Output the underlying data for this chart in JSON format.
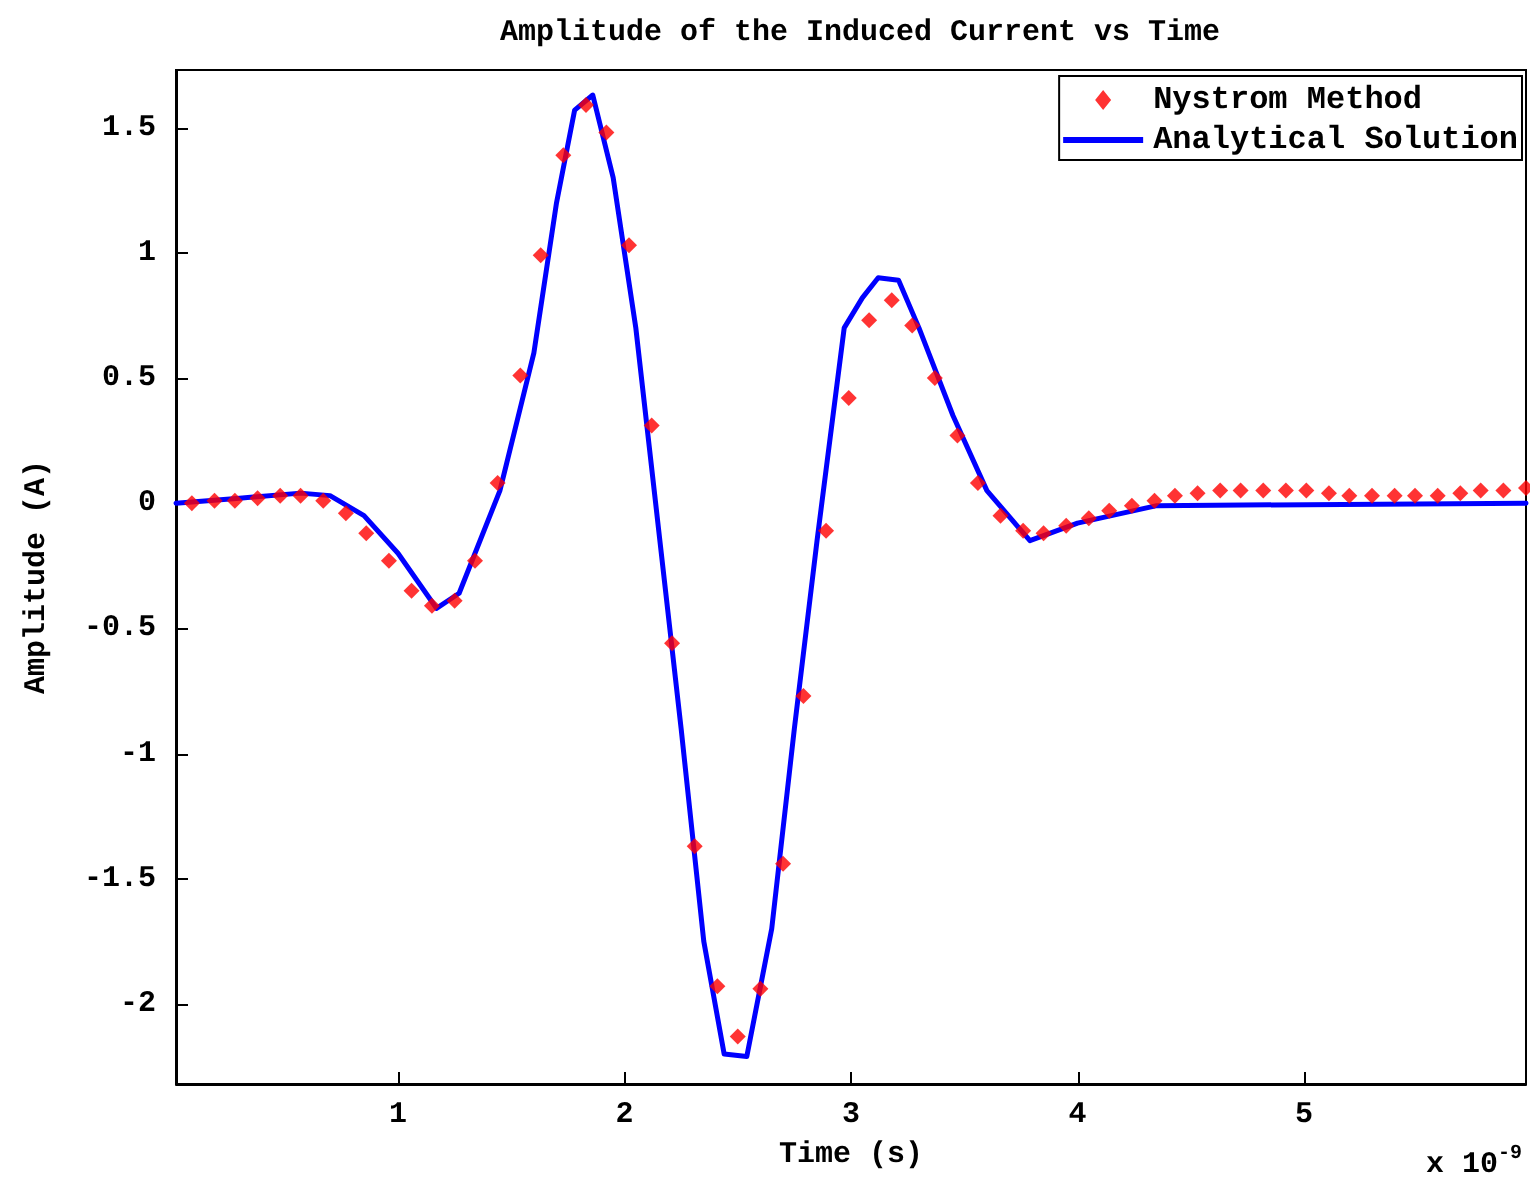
{
  "chart_data": {
    "type": "scatter",
    "title": "Amplitude of the Induced Current vs Time",
    "xlabel": "Time (s)",
    "ylabel": "Amplitude (A)",
    "annotations": [
      "x 10$^{-9}$"
    ],
    "xlim": [
      0.02,
      5.98
    ],
    "xticks": [
      1,
      2,
      3,
      4,
      5
    ],
    "ylim": [
      -2.32,
      1.73
    ],
    "yticks": [
      -2,
      -1.5,
      -1,
      -0.5,
      0,
      0.5,
      1,
      1.5
    ],
    "grid": false,
    "legend": "top right",
    "series": [
      {
        "name": "Nystrom Method",
        "color": "#ff0000",
        "marker": "diamond",
        "x": [
          0.09,
          0.19,
          0.28,
          0.38,
          0.48,
          0.57,
          0.67,
          0.77,
          0.86,
          0.96,
          1.06,
          1.15,
          1.25,
          1.34,
          1.44,
          1.54,
          1.63,
          1.73,
          1.83,
          1.92,
          2.02,
          2.12,
          2.21,
          2.31,
          2.41,
          2.5,
          2.6,
          2.7,
          2.79,
          2.89,
          2.99,
          3.08,
          3.18,
          3.27,
          3.37,
          3.47,
          3.56,
          3.66,
          3.76,
          3.85,
          3.95,
          4.05,
          4.14,
          4.24,
          4.34,
          4.43,
          4.53,
          4.63,
          4.72,
          4.82,
          4.92,
          5.01,
          5.11,
          5.2,
          5.3,
          5.4,
          5.49,
          5.59,
          5.69,
          5.78,
          5.88,
          5.98
        ],
        "values": [
          0.0,
          0.01,
          0.01,
          0.02,
          0.03,
          0.03,
          0.01,
          -0.04,
          -0.12,
          -0.23,
          -0.35,
          -0.41,
          -0.39,
          -0.23,
          0.08,
          0.51,
          0.99,
          1.39,
          1.59,
          1.48,
          1.03,
          0.31,
          -0.56,
          -1.37,
          -1.93,
          -2.13,
          -1.94,
          -1.44,
          -0.77,
          -0.11,
          0.42,
          0.73,
          0.81,
          0.71,
          0.5,
          0.27,
          0.08,
          -0.05,
          -0.11,
          -0.12,
          -0.09,
          -0.06,
          -0.03,
          -0.01,
          0.01,
          0.03,
          0.04,
          0.05,
          0.05,
          0.05,
          0.05,
          0.05,
          0.04,
          0.03,
          0.03,
          0.03,
          0.03,
          0.03,
          0.04,
          0.05,
          0.05,
          0.06
        ]
      },
      {
        "name": "Analytical Solution",
        "type": "line",
        "color": "#0000ff",
        "marker": "none",
        "line_style": "solid",
        "x": [
          0.02,
          0.3,
          0.57,
          0.7,
          0.85,
          1.0,
          1.17,
          1.27,
          1.45,
          1.6,
          1.7,
          1.78,
          1.86,
          1.95,
          2.05,
          2.15,
          2.25,
          2.35,
          2.44,
          2.54,
          2.65,
          2.75,
          2.85,
          2.97,
          3.05,
          3.12,
          3.21,
          3.3,
          3.45,
          3.6,
          3.79,
          4.0,
          4.35,
          5.98
        ],
        "values": [
          0,
          0.02,
          0.04,
          0.03,
          -0.05,
          -0.2,
          -0.42,
          -0.36,
          0.05,
          0.6,
          1.2,
          1.57,
          1.63,
          1.3,
          0.7,
          -0.1,
          -0.9,
          -1.75,
          -2.2,
          -2.21,
          -1.7,
          -0.9,
          -0.15,
          0.7,
          0.82,
          0.9,
          0.89,
          0.7,
          0.35,
          0.05,
          -0.15,
          -0.08,
          -0.01,
          0
        ]
      }
    ]
  }
}
